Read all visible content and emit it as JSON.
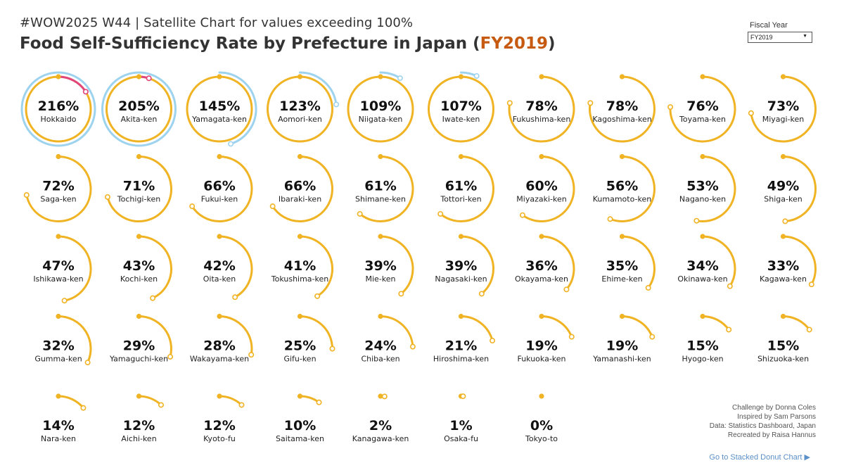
{
  "header": {
    "subtitle": "#WOW2025 W44 | Satellite Chart for values exceeding 100%",
    "title_prefix": "Food Self-Sufficiency Rate by Prefecture in Japan (",
    "title_year": "FY2019",
    "title_suffix": ")"
  },
  "filter": {
    "label": "Fiscal Year",
    "selected": "FY2019"
  },
  "colors": {
    "primary": "#f0b323",
    "satellite": "#9dd3ee",
    "third": "#e0457b",
    "title_year": "#c65a11",
    "link": "#5b8fc7"
  },
  "chart_data": {
    "type": "radial-satellite",
    "title": "Food Self-Sufficiency Rate by Prefecture in Japan (FY2019)",
    "unit": "%",
    "items": [
      {
        "name": "Hokkaido",
        "value": 216,
        "label": "216%"
      },
      {
        "name": "Akita-ken",
        "value": 205,
        "label": "205%"
      },
      {
        "name": "Yamagata-ken",
        "value": 145,
        "label": "145%"
      },
      {
        "name": "Aomori-ken",
        "value": 123,
        "label": "123%"
      },
      {
        "name": "Niigata-ken",
        "value": 109,
        "label": "109%"
      },
      {
        "name": "Iwate-ken",
        "value": 107,
        "label": "107%"
      },
      {
        "name": "Fukushima-ken",
        "value": 78,
        "label": "78%"
      },
      {
        "name": "Kagoshima-ken",
        "value": 78,
        "label": "78%"
      },
      {
        "name": "Toyama-ken",
        "value": 76,
        "label": "76%"
      },
      {
        "name": "Miyagi-ken",
        "value": 73,
        "label": "73%"
      },
      {
        "name": "Saga-ken",
        "value": 72,
        "label": "72%"
      },
      {
        "name": "Tochigi-ken",
        "value": 71,
        "label": "71%"
      },
      {
        "name": "Fukui-ken",
        "value": 66,
        "label": "66%"
      },
      {
        "name": "Ibaraki-ken",
        "value": 66,
        "label": "66%"
      },
      {
        "name": "Shimane-ken",
        "value": 61,
        "label": "61%"
      },
      {
        "name": "Tottori-ken",
        "value": 61,
        "label": "61%"
      },
      {
        "name": "Miyazaki-ken",
        "value": 60,
        "label": "60%"
      },
      {
        "name": "Kumamoto-ken",
        "value": 56,
        "label": "56%"
      },
      {
        "name": "Nagano-ken",
        "value": 53,
        "label": "53%"
      },
      {
        "name": "Shiga-ken",
        "value": 49,
        "label": "49%"
      },
      {
        "name": "Ishikawa-ken",
        "value": 47,
        "label": "47%"
      },
      {
        "name": "Kochi-ken",
        "value": 43,
        "label": "43%"
      },
      {
        "name": "Oita-ken",
        "value": 42,
        "label": "42%"
      },
      {
        "name": "Tokushima-ken",
        "value": 41,
        "label": "41%"
      },
      {
        "name": "Mie-ken",
        "value": 39,
        "label": "39%"
      },
      {
        "name": "Nagasaki-ken",
        "value": 39,
        "label": "39%"
      },
      {
        "name": "Okayama-ken",
        "value": 36,
        "label": "36%"
      },
      {
        "name": "Ehime-ken",
        "value": 35,
        "label": "35%"
      },
      {
        "name": "Okinawa-ken",
        "value": 34,
        "label": "34%"
      },
      {
        "name": "Kagawa-ken",
        "value": 33,
        "label": "33%"
      },
      {
        "name": "Gumma-ken",
        "value": 32,
        "label": "32%"
      },
      {
        "name": "Yamaguchi-ken",
        "value": 29,
        "label": "29%"
      },
      {
        "name": "Wakayama-ken",
        "value": 28,
        "label": "28%"
      },
      {
        "name": "Gifu-ken",
        "value": 25,
        "label": "25%"
      },
      {
        "name": "Chiba-ken",
        "value": 24,
        "label": "24%"
      },
      {
        "name": "Hiroshima-ken",
        "value": 21,
        "label": "21%"
      },
      {
        "name": "Fukuoka-ken",
        "value": 19,
        "label": "19%"
      },
      {
        "name": "Yamanashi-ken",
        "value": 19,
        "label": "19%"
      },
      {
        "name": "Hyogo-ken",
        "value": 15,
        "label": "15%"
      },
      {
        "name": "Shizuoka-ken",
        "value": 15,
        "label": "15%"
      },
      {
        "name": "Nara-ken",
        "value": 14,
        "label": "14%"
      },
      {
        "name": "Aichi-ken",
        "value": 12,
        "label": "12%"
      },
      {
        "name": "Kyoto-fu",
        "value": 12,
        "label": "12%"
      },
      {
        "name": "Saitama-ken",
        "value": 10,
        "label": "10%"
      },
      {
        "name": "Kanagawa-ken",
        "value": 2,
        "label": "2%"
      },
      {
        "name": "Osaka-fu",
        "value": 1,
        "label": "1%"
      },
      {
        "name": "Tokyo-to",
        "value": 0,
        "label": "0%"
      }
    ]
  },
  "credits": {
    "line1": "Challenge by Donna Coles",
    "line2": "Inspired by Sam Parsons",
    "line3": "Data: Statistics Dashboard, Japan",
    "line4": "Recreated by Raisa Hannus"
  },
  "nav": {
    "label": "Go to Stacked Donut Chart ▶"
  }
}
